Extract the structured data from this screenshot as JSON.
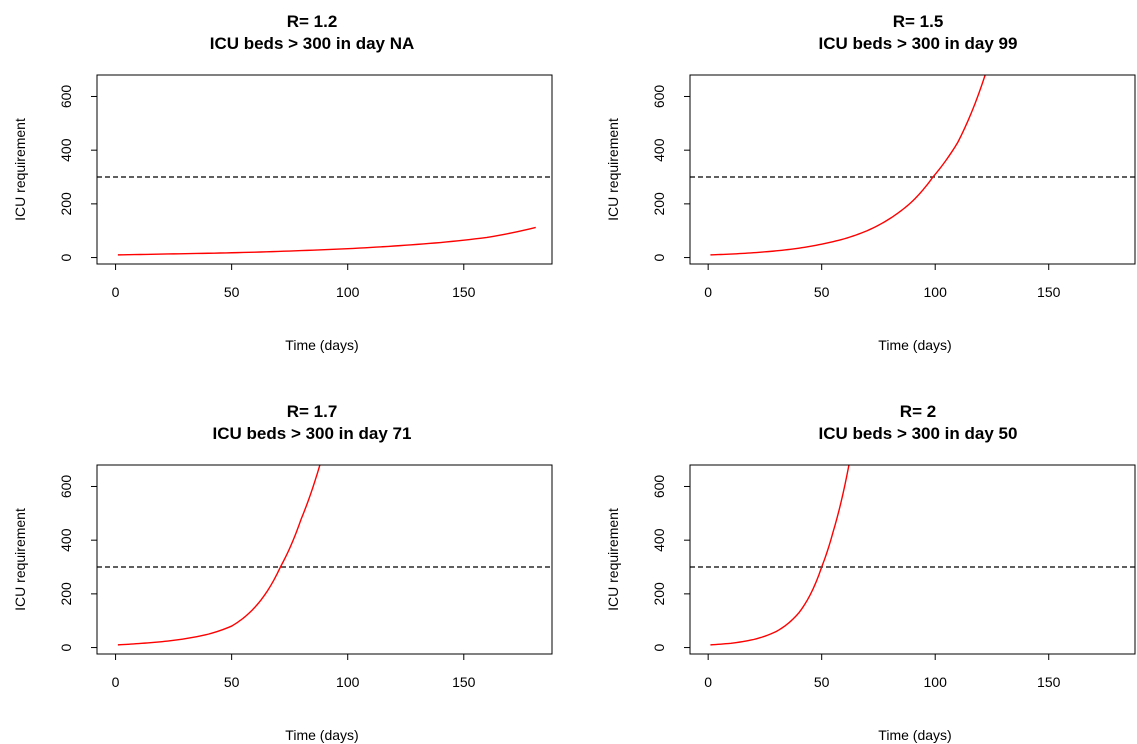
{
  "colors": {
    "curve": "#ff0000",
    "threshold": "#000000",
    "frame": "#000000",
    "background": "#ffffff"
  },
  "chart_data": [
    {
      "type": "line",
      "title_line1": "R= 1.2",
      "title_line2": "ICU beds > 300 in day  NA",
      "xlabel": "Time (days)",
      "ylabel": "ICU requirement",
      "xlim": [
        -8,
        188
      ],
      "ylim": [
        -24,
        680
      ],
      "xticks": [
        0,
        50,
        100,
        150
      ],
      "xtick_labels": [
        "0",
        "50",
        "100",
        "150"
      ],
      "yticks": [
        0,
        200,
        400,
        600
      ],
      "ytick_labels": [
        "0",
        "200",
        "400",
        "600"
      ],
      "hline": 300,
      "grid": false,
      "series": [
        {
          "x": [
            1,
            20,
            40,
            60,
            80,
            100,
            120,
            140,
            160,
            181
          ],
          "y": [
            10,
            13,
            16,
            20,
            26,
            33,
            43,
            56,
            75,
            112
          ]
        }
      ]
    },
    {
      "type": "line",
      "title_line1": "R= 1.5",
      "title_line2": "ICU beds > 300 in day  99",
      "xlabel": "Time (days)",
      "ylabel": "ICU requirement",
      "xlim": [
        -8,
        188
      ],
      "ylim": [
        -24,
        680
      ],
      "xticks": [
        0,
        50,
        100,
        150
      ],
      "xtick_labels": [
        "0",
        "50",
        "100",
        "150"
      ],
      "yticks": [
        0,
        200,
        400,
        600
      ],
      "ytick_labels": [
        "0",
        "200",
        "400",
        "600"
      ],
      "hline": 300,
      "grid": false,
      "series": [
        {
          "x": [
            1,
            10,
            20,
            30,
            40,
            50,
            60,
            70,
            80,
            90,
            99,
            110,
            122
          ],
          "y": [
            10,
            13,
            18,
            25,
            35,
            50,
            70,
            100,
            145,
            210,
            300,
            430,
            680
          ]
        }
      ]
    },
    {
      "type": "line",
      "title_line1": "R= 1.7",
      "title_line2": "ICU beds > 300 in day  71",
      "xlabel": "Time (days)",
      "ylabel": "ICU requirement",
      "xlim": [
        -8,
        188
      ],
      "ylim": [
        -24,
        680
      ],
      "xticks": [
        0,
        50,
        100,
        150
      ],
      "xtick_labels": [
        "0",
        "50",
        "100",
        "150"
      ],
      "yticks": [
        0,
        200,
        400,
        600
      ],
      "ytick_labels": [
        "0",
        "200",
        "400",
        "600"
      ],
      "hline": 300,
      "grid": false,
      "series": [
        {
          "x": [
            1,
            10,
            20,
            30,
            40,
            50,
            60,
            71,
            80,
            88
          ],
          "y": [
            10,
            15,
            22,
            33,
            50,
            80,
            150,
            300,
            480,
            680
          ]
        }
      ]
    },
    {
      "type": "line",
      "title_line1": "R= 2",
      "title_line2": "ICU beds > 300 in day  50",
      "xlabel": "Time (days)",
      "ylabel": "ICU requirement",
      "xlim": [
        -8,
        188
      ],
      "ylim": [
        -24,
        680
      ],
      "xticks": [
        0,
        50,
        100,
        150
      ],
      "xtick_labels": [
        "0",
        "50",
        "100",
        "150"
      ],
      "yticks": [
        0,
        200,
        400,
        600
      ],
      "ytick_labels": [
        "0",
        "200",
        "400",
        "600"
      ],
      "hline": 300,
      "grid": false,
      "series": [
        {
          "x": [
            1,
            10,
            20,
            30,
            40,
            50,
            55,
            62
          ],
          "y": [
            10,
            16,
            30,
            60,
            130,
            300,
            430,
            680
          ]
        }
      ]
    }
  ]
}
